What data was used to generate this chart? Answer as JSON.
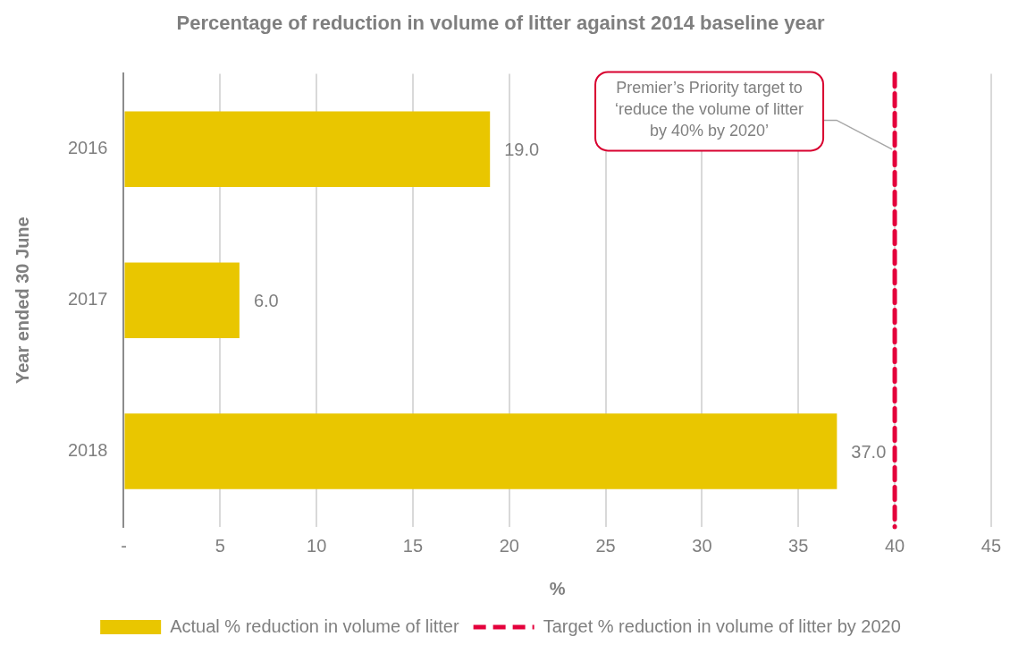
{
  "chart_data": {
    "type": "bar",
    "orientation": "horizontal",
    "title": "Percentage of reduction in volume of litter against 2014 baseline year",
    "xlabel": "%",
    "ylabel": "Year ended 30 June",
    "categories": [
      "2016",
      "2017",
      "2018"
    ],
    "series": [
      {
        "name": "Actual % reduction in volume of litter",
        "color": "#e9c600",
        "values": [
          19,
          6,
          37
        ],
        "value_labels": [
          "19.0",
          "6.0",
          "37.0"
        ]
      }
    ],
    "xlim": [
      0,
      45
    ],
    "xticks": [
      {
        "value": 0,
        "label": "-"
      },
      5,
      10,
      15,
      20,
      25,
      30,
      35,
      40,
      45
    ],
    "ref_lines": [
      {
        "axis": "x",
        "value": 40,
        "label": "Target % reduction in volume of litter by 2020",
        "color": "#e4003b",
        "line_style": "dashed"
      }
    ],
    "annotations": [
      {
        "text": "Premier’s Priority target to ‘reduce the volume of litter by 40% by 2020’",
        "x": 40,
        "y": "2016"
      }
    ],
    "grid": "x",
    "legend": "bottom"
  }
}
